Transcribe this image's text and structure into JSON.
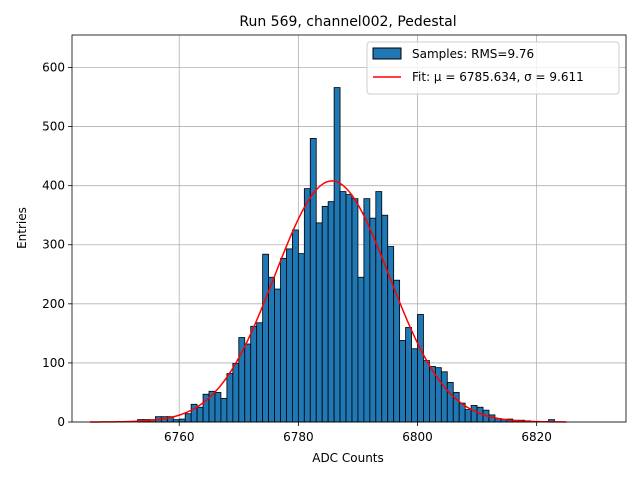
{
  "chart_data": {
    "type": "bar",
    "title": "Run 569, channel002, Pedestal",
    "xlabel": "ADC Counts",
    "ylabel": "Entries",
    "xlim": [
      6742,
      6835
    ],
    "ylim": [
      0,
      655
    ],
    "xticks": [
      6760,
      6780,
      6800,
      6820
    ],
    "yticks": [
      0,
      100,
      200,
      300,
      400,
      500,
      600
    ],
    "grid": true,
    "legend_position": "top-right",
    "histogram": {
      "name": "Samples: RMS=9.76",
      "color": "#1f77b4",
      "edgecolor": "#000000",
      "bin_start": 6753.0,
      "bin_width": 1.0,
      "values": [
        4,
        4,
        4,
        9,
        9,
        9,
        4,
        5,
        14,
        30,
        25,
        47,
        52,
        50,
        40,
        82,
        99,
        143,
        132,
        162,
        168,
        284,
        245,
        225,
        277,
        293,
        325,
        285,
        395,
        480,
        337,
        365,
        373,
        566,
        390,
        385,
        378,
        245,
        378,
        345,
        390,
        350,
        297,
        240,
        138,
        160,
        124,
        182,
        104,
        94,
        92,
        85,
        67,
        50,
        32,
        21,
        28,
        25,
        20,
        12,
        6,
        4,
        5,
        3,
        3,
        2,
        1,
        1,
        1,
        4
      ]
    },
    "fit": {
      "name": "Fit: μ = 6785.634, σ = 9.611",
      "color": "#ff0000",
      "mu": 6785.634,
      "sigma": 9.611,
      "amplitude": 408,
      "x_range": [
        6745,
        6825
      ]
    }
  }
}
